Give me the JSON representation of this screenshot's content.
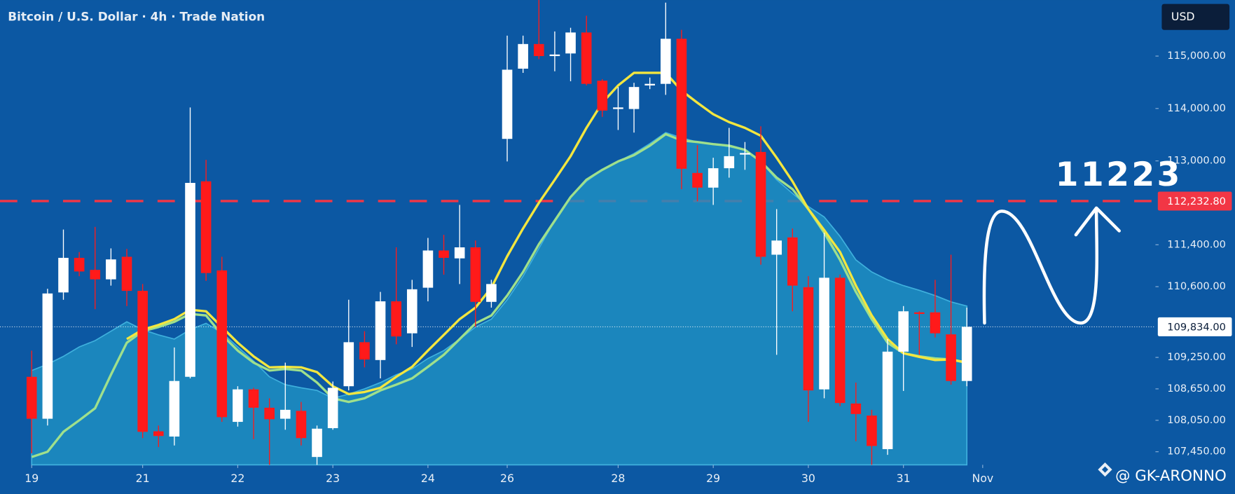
{
  "chart_data": {
    "type": "candlestick",
    "title": "Bitcoin / U.S. Dollar · 4h · Trade Nation",
    "currency": "USD",
    "up_color": "#ffffff",
    "down_color": "#ff1a1a",
    "ohlc": [
      [
        108880,
        109380,
        107420,
        108080
      ],
      [
        108080,
        110560,
        107950,
        110470
      ],
      [
        110490,
        111690,
        110350,
        111150
      ],
      [
        111150,
        111260,
        110800,
        110890
      ],
      [
        110920,
        111740,
        110170,
        110740
      ],
      [
        110740,
        111330,
        110620,
        111120
      ],
      [
        111170,
        111320,
        110230,
        110520
      ],
      [
        110520,
        110650,
        107710,
        107830
      ],
      [
        107840,
        107950,
        107540,
        107750
      ],
      [
        107740,
        109440,
        107570,
        108800
      ],
      [
        108880,
        114020,
        108850,
        112580
      ],
      [
        112610,
        113020,
        110710,
        110860
      ],
      [
        110910,
        111170,
        108020,
        108110
      ],
      [
        108020,
        108700,
        107930,
        108640
      ],
      [
        108640,
        108670,
        107690,
        108290
      ],
      [
        108290,
        108470,
        107200,
        108070
      ],
      [
        108080,
        109150,
        107870,
        108250
      ],
      [
        108230,
        108400,
        107570,
        107710
      ],
      [
        107350,
        107950,
        107200,
        107890
      ],
      [
        107900,
        108790,
        107870,
        108670
      ],
      [
        108700,
        110350,
        108620,
        109540
      ],
      [
        109540,
        109750,
        109060,
        109210
      ],
      [
        109200,
        110500,
        108850,
        110320
      ],
      [
        110320,
        111350,
        109500,
        109650
      ],
      [
        109710,
        110730,
        109450,
        110550
      ],
      [
        110580,
        111530,
        110320,
        111290
      ],
      [
        111290,
        111590,
        110830,
        111150
      ],
      [
        111140,
        112160,
        110650,
        111350
      ],
      [
        111350,
        111480,
        109830,
        110310
      ],
      [
        110310,
        110730,
        110200,
        110650
      ],
      [
        113420,
        115390,
        112990,
        114740
      ],
      [
        114760,
        115390,
        114680,
        115230
      ],
      [
        115230,
        116070,
        114940,
        115000
      ],
      [
        115000,
        115470,
        114710,
        115030
      ],
      [
        115050,
        115540,
        114520,
        115450
      ],
      [
        115450,
        115770,
        114440,
        114470
      ],
      [
        114530,
        114560,
        113840,
        113960
      ],
      [
        113990,
        114410,
        113590,
        114020
      ],
      [
        113990,
        114490,
        113540,
        114410
      ],
      [
        114440,
        114590,
        114370,
        114470
      ],
      [
        114470,
        116020,
        114260,
        115330
      ],
      [
        115330,
        115500,
        112460,
        112850
      ],
      [
        112770,
        113300,
        112230,
        112490
      ],
      [
        112490,
        113060,
        112160,
        112860
      ],
      [
        112860,
        113630,
        112680,
        113090
      ],
      [
        113120,
        113360,
        112830,
        113150
      ],
      [
        113170,
        113660,
        111020,
        111170
      ],
      [
        111210,
        112080,
        109300,
        111480
      ],
      [
        111540,
        111710,
        110130,
        110620
      ],
      [
        110590,
        110800,
        108020,
        108620
      ],
      [
        108640,
        111630,
        108470,
        110770
      ],
      [
        110770,
        110830,
        108320,
        108380
      ],
      [
        108370,
        108770,
        107650,
        108170
      ],
      [
        108140,
        108250,
        107200,
        107560
      ],
      [
        107500,
        109600,
        107390,
        109360
      ],
      [
        109360,
        110230,
        108610,
        110130
      ],
      [
        110110,
        110130,
        109300,
        110080
      ],
      [
        110110,
        110730,
        109630,
        109710
      ],
      [
        109690,
        111210,
        108730,
        108800
      ],
      [
        108800,
        110200,
        108700,
        109834
      ]
    ],
    "series": [
      {
        "type": "area",
        "color": "#1f90c3",
        "values": [
          109000,
          109120,
          109270,
          109450,
          109570,
          109750,
          109930,
          109780,
          109680,
          109600,
          109780,
          109900,
          109720,
          109450,
          109180,
          108880,
          108730,
          108670,
          108620,
          108470,
          108550,
          108650,
          108770,
          108920,
          109030,
          109230,
          109380,
          109600,
          109830,
          109980,
          110350,
          110800,
          111330,
          111860,
          112310,
          112610,
          112830,
          112990,
          113140,
          113330,
          113540,
          113440,
          113360,
          113320,
          113270,
          113210,
          112990,
          112640,
          112380,
          112130,
          111930,
          111560,
          111110,
          110880,
          110730,
          110620,
          110530,
          110430,
          110310,
          110230
        ]
      },
      {
        "type": "line",
        "color": "#9fe08c",
        "values": [
          107350,
          107450,
          107830,
          108050,
          108280,
          108920,
          109530,
          109750,
          109830,
          109930,
          110080,
          110050,
          109680,
          109380,
          109150,
          109000,
          109030,
          109000,
          108770,
          108470,
          108400,
          108470,
          108620,
          108730,
          108850,
          109070,
          109300,
          109600,
          109900,
          110050,
          110430,
          110880,
          111410,
          111860,
          112310,
          112640,
          112830,
          112990,
          113110,
          113290,
          113510,
          113390,
          113360,
          113320,
          113290,
          113210,
          112990,
          112680,
          112460,
          112080,
          111630,
          111110,
          110500,
          109980,
          109530,
          109330,
          109270,
          109230,
          109210,
          109150
        ]
      },
      {
        "type": "line",
        "color": "#f3e63f",
        "values": [
          null,
          null,
          null,
          null,
          null,
          null,
          109600,
          109780,
          109870,
          109980,
          110160,
          110130,
          109830,
          109530,
          109270,
          109060,
          109070,
          109060,
          108970,
          108700,
          108550,
          108590,
          108670,
          108880,
          109070,
          109380,
          109680,
          109980,
          110200,
          110580,
          111180,
          111710,
          112200,
          112640,
          113090,
          113630,
          114110,
          114440,
          114680,
          114680,
          114680,
          114340,
          114110,
          113890,
          113740,
          113630,
          113480,
          113060,
          112610,
          112080,
          111680,
          111260,
          110620,
          110050,
          109600,
          109330,
          109260,
          109200,
          109210,
          109150
        ]
      }
    ],
    "xlim": [
      -2,
      70.8
    ],
    "xticks": [
      {
        "value": 0,
        "label": "19"
      },
      {
        "value": 7,
        "label": "21"
      },
      {
        "value": 13,
        "label": "22"
      },
      {
        "value": 19,
        "label": "23"
      },
      {
        "value": 25,
        "label": "24"
      },
      {
        "value": 30,
        "label": "26"
      },
      {
        "value": 37,
        "label": "28"
      },
      {
        "value": 43,
        "label": "29"
      },
      {
        "value": 49,
        "label": "30"
      },
      {
        "value": 55,
        "label": "31"
      },
      {
        "value": 60,
        "label": "Nov"
      }
    ],
    "ylim": [
      107200,
      116070
    ],
    "yticks": [
      {
        "value": 115000,
        "label": "115,000.00"
      },
      {
        "value": 114000,
        "label": "114,000.00"
      },
      {
        "value": 113000,
        "label": "113,000.00"
      },
      {
        "value": 111400,
        "label": "111,400.00"
      },
      {
        "value": 110600,
        "label": "110,600.00"
      },
      {
        "value": 109250,
        "label": "109,250.00"
      },
      {
        "value": 108650,
        "label": "108,650.00"
      },
      {
        "value": 108050,
        "label": "108,050.00"
      },
      {
        "value": 107450,
        "label": "107,450.00"
      }
    ],
    "price_lines": [
      {
        "value": 112232.8,
        "label": "112,232.80",
        "color": "#f23645",
        "style": "dashed"
      },
      {
        "value": 109834,
        "label": "109,834.00",
        "color": "#ffffff",
        "style": "dotted"
      }
    ],
    "annotation": "11223",
    "watermark": "@ GK-ARONNO"
  }
}
